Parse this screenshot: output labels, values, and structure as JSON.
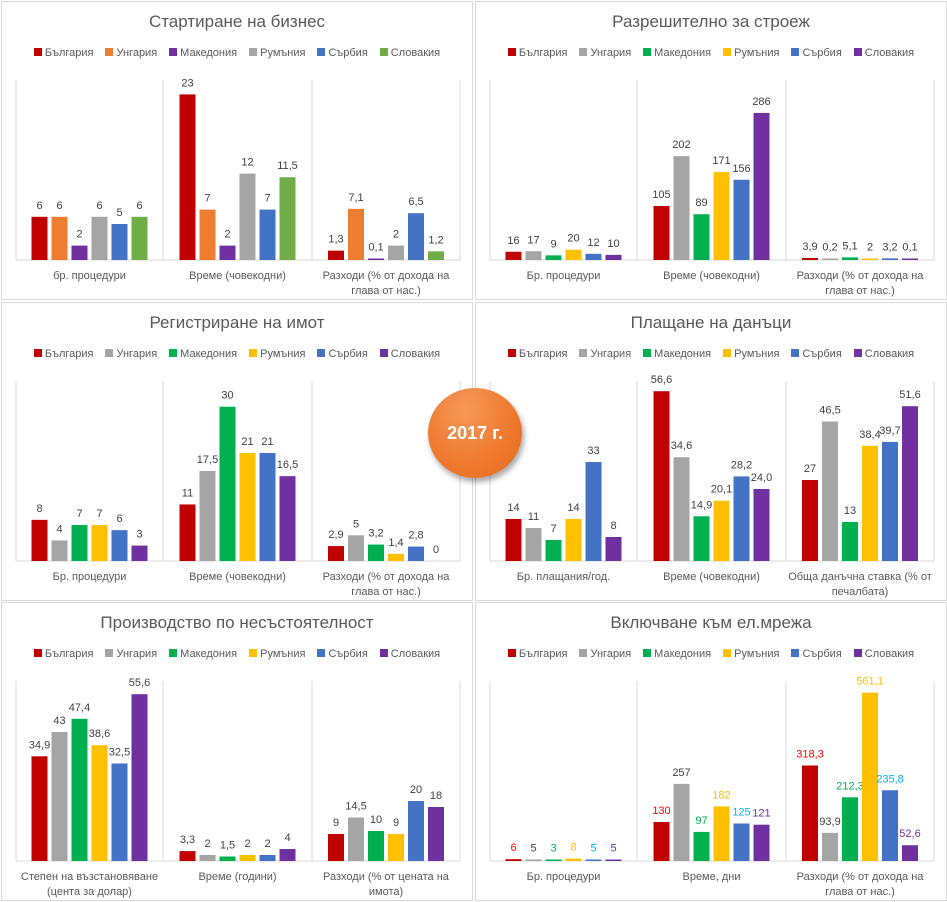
{
  "badge": "2017 г.",
  "colors": {
    "red": "#c00000",
    "orange": "#ed7d31",
    "purple": "#7030a0",
    "gray": "#a5a5a5",
    "blue": "#4472c4",
    "green": "#70ad47",
    "dgreen": "#00b050",
    "yellow": "#ffc000"
  },
  "chart_data": [
    {
      "type": "bar",
      "title": "Стартиране на бизнес",
      "categories": [
        "бр. процедури",
        "Време (човекодни)",
        "Разходи (% от дохода на глава от нас.)"
      ],
      "series": [
        {
          "name": "България",
          "color": "#c00000",
          "values": [
            6,
            23,
            1.3
          ],
          "labels": [
            "6",
            "23",
            "1,3"
          ]
        },
        {
          "name": "Унгария",
          "color": "#ed7d31",
          "values": [
            6,
            7,
            7.1
          ],
          "labels": [
            "6",
            "7",
            "7,1"
          ]
        },
        {
          "name": "Македония",
          "color": "#7030a0",
          "values": [
            2,
            2,
            0.1
          ],
          "labels": [
            "2",
            "2",
            "0,1"
          ]
        },
        {
          "name": "Румъния",
          "color": "#a5a5a5",
          "values": [
            6,
            12,
            2
          ],
          "labels": [
            "6",
            "12",
            "2"
          ]
        },
        {
          "name": "Сърбия",
          "color": "#4472c4",
          "values": [
            5,
            7,
            6.5
          ],
          "labels": [
            "5",
            "7",
            "6,5"
          ]
        },
        {
          "name": "Словакия",
          "color": "#70ad47",
          "values": [
            6,
            11.5,
            1.2
          ],
          "labels": [
            "6",
            "11,5",
            "1,2"
          ]
        }
      ],
      "ylim": [
        0,
        25
      ],
      "grid": false,
      "legend": "top"
    },
    {
      "type": "bar",
      "title": "Разрешително за строеж",
      "categories": [
        "Бр. процедури",
        "Време (човекодни)",
        "Разходи (% от дохода на глава от нас.)"
      ],
      "series": [
        {
          "name": "България",
          "color": "#c00000",
          "values": [
            16,
            105,
            3.9
          ],
          "labels": [
            "16",
            "105",
            "3,9"
          ]
        },
        {
          "name": "Унгария",
          "color": "#a5a5a5",
          "values": [
            17,
            202,
            0.2
          ],
          "labels": [
            "17",
            "202",
            "0,2"
          ]
        },
        {
          "name": "Македония",
          "color": "#00b050",
          "values": [
            9,
            89,
            5.1
          ],
          "labels": [
            "9",
            "89",
            "5,1"
          ]
        },
        {
          "name": "Румъния",
          "color": "#ffc000",
          "values": [
            20,
            171,
            2
          ],
          "labels": [
            "20",
            "171",
            "2"
          ]
        },
        {
          "name": "Сърбия",
          "color": "#4472c4",
          "values": [
            12,
            156,
            3.2
          ],
          "labels": [
            "12",
            "156",
            "3,2"
          ]
        },
        {
          "name": "Словакия",
          "color": "#7030a0",
          "values": [
            10,
            286,
            0.1
          ],
          "labels": [
            "10",
            "286",
            "0,1"
          ]
        }
      ],
      "ylim": [
        0,
        350
      ],
      "grid": false,
      "legend": "top"
    },
    {
      "type": "bar",
      "title": "Регистриране на имот",
      "categories": [
        "Бр. процедури",
        "Време (човекодни)",
        "Разходи (% от дохода на глава от нас.)"
      ],
      "series": [
        {
          "name": "България",
          "color": "#c00000",
          "values": [
            8,
            11,
            2.9
          ],
          "labels": [
            "8",
            "11",
            "2,9"
          ]
        },
        {
          "name": "Унгария",
          "color": "#a5a5a5",
          "values": [
            4,
            17.5,
            5
          ],
          "labels": [
            "4",
            "17,5",
            "5"
          ]
        },
        {
          "name": "Македония",
          "color": "#00b050",
          "values": [
            7,
            30,
            3.2
          ],
          "labels": [
            "7",
            "30",
            "3,2"
          ]
        },
        {
          "name": "Румъния",
          "color": "#ffc000",
          "values": [
            7,
            21,
            1.4
          ],
          "labels": [
            "7",
            "21",
            "1,4"
          ]
        },
        {
          "name": "Сърбия",
          "color": "#4472c4",
          "values": [
            6,
            21,
            2.8
          ],
          "labels": [
            "6",
            "21",
            "2,8"
          ]
        },
        {
          "name": "Словакия",
          "color": "#7030a0",
          "values": [
            3,
            16.5,
            0
          ],
          "labels": [
            "3",
            "16,5",
            "0"
          ]
        }
      ],
      "ylim": [
        0,
        35
      ],
      "grid": false,
      "legend": "top"
    },
    {
      "type": "bar",
      "title": "Плащане на данъци",
      "categories": [
        "Бр. плащания/год.",
        "Време (човекодни)",
        "Обща данъчна ставка (% от печалбата)"
      ],
      "series": [
        {
          "name": "България",
          "color": "#c00000",
          "values": [
            14,
            56.6,
            27
          ],
          "labels": [
            "14",
            "56,6",
            "27"
          ]
        },
        {
          "name": "Унгария",
          "color": "#a5a5a5",
          "values": [
            11,
            34.6,
            46.5
          ],
          "labels": [
            "11",
            "34,6",
            "46,5"
          ]
        },
        {
          "name": "Македония",
          "color": "#00b050",
          "values": [
            7,
            14.9,
            13
          ],
          "labels": [
            "7",
            "14,9",
            "13"
          ]
        },
        {
          "name": "Румъния",
          "color": "#ffc000",
          "values": [
            14,
            20.1,
            38.4
          ],
          "labels": [
            "14",
            "20,1",
            "38,4"
          ]
        },
        {
          "name": "Сърбия",
          "color": "#4472c4",
          "values": [
            33,
            28.2,
            39.7
          ],
          "labels": [
            "33",
            "28,2",
            "39,7"
          ]
        },
        {
          "name": "Словакия",
          "color": "#7030a0",
          "values": [
            8,
            24.0,
            51.6
          ],
          "labels": [
            "8",
            "24,0",
            "51,6"
          ]
        }
      ],
      "ylim": [
        0,
        60
      ],
      "grid": false,
      "legend": "top"
    },
    {
      "type": "bar",
      "title": "Производство по несъстоятелност",
      "categories": [
        "Степен на възстановяване (цента за долар)",
        "Време (години)",
        "Разходи (% от цената на имота)"
      ],
      "series": [
        {
          "name": "България",
          "color": "#c00000",
          "values": [
            34.9,
            3.3,
            9
          ],
          "labels": [
            "34,9",
            "3,3",
            "9"
          ]
        },
        {
          "name": "Унгария",
          "color": "#a5a5a5",
          "values": [
            43,
            2,
            14.5
          ],
          "labels": [
            "43",
            "2",
            "14,5"
          ]
        },
        {
          "name": "Македония",
          "color": "#00b050",
          "values": [
            47.4,
            1.5,
            10
          ],
          "labels": [
            "47,4",
            "1,5",
            "10"
          ]
        },
        {
          "name": "Румъния",
          "color": "#ffc000",
          "values": [
            38.6,
            2,
            9
          ],
          "labels": [
            "38,6",
            "2",
            "9"
          ]
        },
        {
          "name": "Сърбия",
          "color": "#4472c4",
          "values": [
            32.5,
            2,
            20
          ],
          "labels": [
            "32,5",
            "2",
            "20"
          ]
        },
        {
          "name": "Словакия",
          "color": "#7030a0",
          "values": [
            55.6,
            4,
            18
          ],
          "labels": [
            "55,6",
            "4",
            "18"
          ]
        }
      ],
      "ylim": [
        0,
        60
      ],
      "grid": false,
      "legend": "top"
    },
    {
      "type": "bar",
      "title": "Включване към ел.мрежа",
      "categories": [
        "Бр. процедури",
        "Време, дни",
        "Разходи (% от дохода на глава от нас.)"
      ],
      "colored_labels": true,
      "series": [
        {
          "name": "България",
          "color": "#c00000",
          "label_color": "#ff0000",
          "values": [
            6,
            130,
            318.3
          ],
          "labels": [
            "6",
            "130",
            "318,3"
          ]
        },
        {
          "name": "Унгария",
          "color": "#a5a5a5",
          "label_color": "#404040",
          "values": [
            5,
            257,
            93.9
          ],
          "labels": [
            "5",
            "257",
            "93,9"
          ]
        },
        {
          "name": "Македония",
          "color": "#00b050",
          "label_color": "#00b050",
          "values": [
            3,
            97,
            212.3
          ],
          "labels": [
            "3",
            "97",
            "212,3"
          ]
        },
        {
          "name": "Румъния",
          "color": "#ffc000",
          "label_color": "#ffc000",
          "values": [
            8,
            182,
            561.1
          ],
          "labels": [
            "8",
            "182",
            "561,1"
          ]
        },
        {
          "name": "Сърбия",
          "color": "#4472c4",
          "label_color": "#00b0f0",
          "values": [
            5,
            125,
            235.8
          ],
          "labels": [
            "5",
            "125",
            "235,8"
          ]
        },
        {
          "name": "Словакия",
          "color": "#7030a0",
          "label_color": "#7030a0",
          "values": [
            5,
            121,
            52.6
          ],
          "labels": [
            "5",
            "121",
            "52,6"
          ]
        }
      ],
      "ylim": [
        0,
        600
      ],
      "grid": false,
      "legend": "top"
    }
  ]
}
